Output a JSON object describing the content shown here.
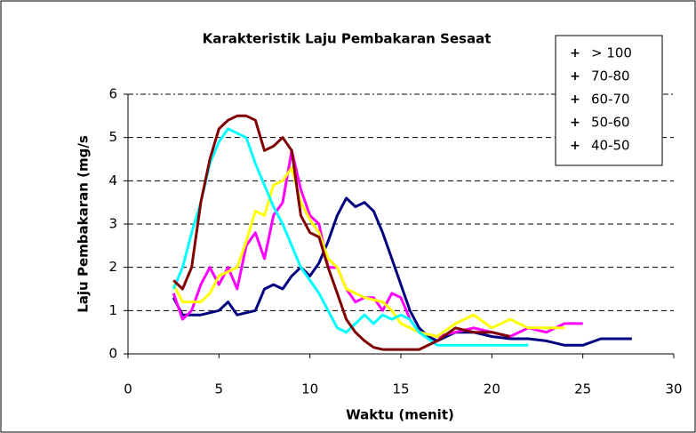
{
  "chart_data": {
    "type": "line",
    "title": "Karakteristik Laju Pembakaran Sesaat",
    "xlabel": "Waktu (menit)",
    "ylabel": "Laju Pembakaran (mg/s",
    "xlim": [
      0,
      30
    ],
    "xticks": [
      0,
      5,
      10,
      15,
      20,
      25,
      30
    ],
    "ylim": [
      0,
      6
    ],
    "yticks": [
      0,
      1,
      2,
      3,
      4,
      5,
      6
    ],
    "grid": true,
    "legend": "upper right",
    "series": [
      {
        "name": "> 100",
        "color": "#000080",
        "x": [
          2.5,
          3,
          4,
          5,
          5.5,
          6,
          7,
          7.5,
          8,
          8.5,
          9,
          9.5,
          10,
          10.5,
          11,
          11.5,
          12,
          12.5,
          13,
          13.5,
          14,
          14.5,
          15,
          15.5,
          16,
          16.5,
          17,
          18,
          19,
          20,
          21,
          22,
          23,
          24,
          25,
          26,
          27.7
        ],
        "values": [
          1.3,
          0.9,
          0.9,
          1.0,
          1.2,
          0.9,
          1.0,
          1.5,
          1.6,
          1.5,
          1.8,
          2.0,
          1.8,
          2.1,
          2.6,
          3.2,
          3.6,
          3.4,
          3.5,
          3.3,
          2.8,
          2.2,
          1.6,
          1.0,
          0.6,
          0.4,
          0.3,
          0.5,
          0.5,
          0.4,
          0.35,
          0.35,
          0.3,
          0.2,
          0.2,
          0.35,
          0.35
        ]
      },
      {
        "name": "70-80",
        "color": "#ff00ff",
        "x": [
          2.5,
          3,
          3.5,
          4,
          4.5,
          5,
          5.5,
          6,
          6.5,
          7,
          7.5,
          8,
          8.5,
          9,
          9.5,
          10,
          10.5,
          11,
          11.5,
          12,
          12.5,
          13,
          13.5,
          14,
          14.5,
          15,
          15.5,
          16,
          17,
          18,
          19,
          20,
          21,
          22,
          23,
          24,
          25
        ],
        "values": [
          1.4,
          0.8,
          1.0,
          1.6,
          2.0,
          1.6,
          2.0,
          1.5,
          2.5,
          2.8,
          2.2,
          3.2,
          3.5,
          4.7,
          3.8,
          3.2,
          3.0,
          2.0,
          2.0,
          1.5,
          1.2,
          1.3,
          1.3,
          1.0,
          1.4,
          1.3,
          0.8,
          0.5,
          0.4,
          0.5,
          0.6,
          0.5,
          0.4,
          0.6,
          0.5,
          0.7,
          0.7
        ]
      },
      {
        "name": "60-70",
        "color": "#ffff00",
        "x": [
          2.5,
          3,
          4,
          4.5,
          5,
          6,
          6.5,
          7,
          7.5,
          8,
          8.5,
          9,
          9.5,
          10,
          10.5,
          11,
          11.5,
          12,
          13,
          14,
          14.5,
          15,
          16,
          17,
          18,
          19,
          20,
          21,
          22,
          23,
          24
        ],
        "values": [
          1.6,
          1.2,
          1.2,
          1.4,
          1.8,
          2.0,
          2.6,
          3.3,
          3.2,
          3.9,
          4.0,
          4.3,
          3.5,
          3.1,
          2.8,
          2.2,
          2.0,
          1.5,
          1.3,
          1.2,
          1.0,
          0.7,
          0.5,
          0.4,
          0.7,
          0.9,
          0.6,
          0.8,
          0.6,
          0.6,
          0.6
        ]
      },
      {
        "name": "50-60",
        "color": "#00ffff",
        "x": [
          2.5,
          3,
          3.5,
          4,
          4.5,
          5,
          5.5,
          6,
          6.5,
          7,
          7.5,
          8,
          8.5,
          9,
          9.5,
          10,
          10.5,
          11,
          11.5,
          12,
          13,
          13.5,
          14,
          14.5,
          15,
          15.5,
          16,
          17,
          18,
          20,
          22
        ],
        "values": [
          1.5,
          2.0,
          2.8,
          3.5,
          4.4,
          4.9,
          5.2,
          5.1,
          5.0,
          4.4,
          3.9,
          3.4,
          3.0,
          2.5,
          2.0,
          1.7,
          1.4,
          1.0,
          0.6,
          0.5,
          0.9,
          0.7,
          0.9,
          0.8,
          0.9,
          0.8,
          0.5,
          0.2,
          0.2,
          0.2,
          0.2
        ]
      },
      {
        "name": "40-50",
        "color": "#800000",
        "x": [
          2.5,
          3,
          3.5,
          4,
          4.5,
          5,
          5.5,
          6,
          6.5,
          7,
          7.5,
          8,
          8.5,
          9,
          9.5,
          10,
          10.5,
          11,
          11.5,
          12,
          12.5,
          13,
          13.5,
          14,
          15,
          16,
          17,
          18,
          19,
          20,
          21
        ],
        "values": [
          1.7,
          1.5,
          2.0,
          3.5,
          4.5,
          5.2,
          5.4,
          5.5,
          5.5,
          5.4,
          4.7,
          4.8,
          5.0,
          4.7,
          3.2,
          2.8,
          2.7,
          2.0,
          1.4,
          0.8,
          0.5,
          0.3,
          0.15,
          0.1,
          0.1,
          0.1,
          0.3,
          0.6,
          0.5,
          0.5,
          0.4
        ]
      }
    ]
  }
}
